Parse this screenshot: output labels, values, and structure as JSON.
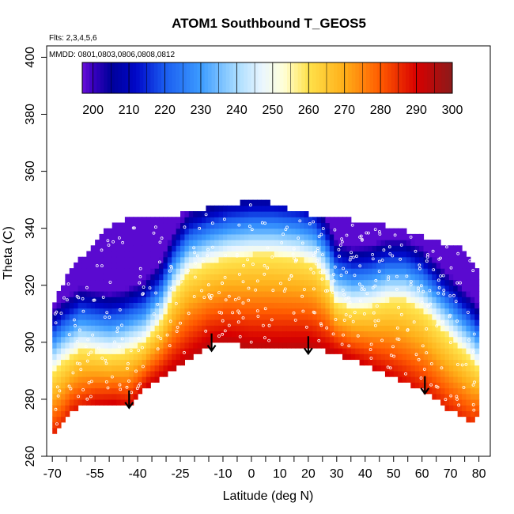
{
  "chart_data": {
    "type": "heatmap",
    "title": "ATOM1 Southbound T_GEOS5",
    "flights_note": "Flts: 2,3,4,5,6",
    "dates_note": "MMDD: 0801,0803,0806,0808,0812",
    "xlabel": "Latitude (deg N)",
    "ylabel": "Theta (C)",
    "xlim": [
      -72,
      84
    ],
    "ylim": [
      260,
      404
    ],
    "x_ticks": [
      -70,
      -55,
      -40,
      -25,
      -10,
      0,
      10,
      20,
      30,
      40,
      50,
      60,
      70,
      80
    ],
    "x_tick_labels": [
      "-70",
      "-55",
      "-40",
      "-25",
      "-10",
      "0",
      "10",
      "20",
      "30",
      "40",
      "50",
      "60",
      "70",
      "80"
    ],
    "x_minor_ticks": [
      -65,
      -60,
      -50,
      -45,
      -35,
      -30,
      -20,
      -15,
      -5,
      5,
      15,
      25,
      35,
      45,
      55,
      65,
      75
    ],
    "y_ticks": [
      260,
      280,
      300,
      320,
      340,
      360,
      380,
      400
    ],
    "y_tick_labels": [
      "260",
      "280",
      "300",
      "320",
      "340",
      "360",
      "380",
      "400"
    ],
    "colorbar": {
      "min": 197,
      "max": 300,
      "ticks": [
        200,
        210,
        220,
        230,
        240,
        250,
        260,
        270,
        280,
        290,
        300
      ],
      "tick_labels": [
        "200",
        "210",
        "220",
        "230",
        "240",
        "250",
        "260",
        "270",
        "280",
        "290",
        "300"
      ],
      "colors": [
        {
          "v": 197,
          "c": "#6a0fd8"
        },
        {
          "v": 200,
          "c": "#3a00c0"
        },
        {
          "v": 205,
          "c": "#00009a"
        },
        {
          "v": 212,
          "c": "#0008c8"
        },
        {
          "v": 220,
          "c": "#1a5cf0"
        },
        {
          "v": 230,
          "c": "#3c9cff"
        },
        {
          "v": 240,
          "c": "#a8dcff"
        },
        {
          "v": 247,
          "c": "#eaf6ff"
        },
        {
          "v": 253,
          "c": "#ffffd8"
        },
        {
          "v": 260,
          "c": "#ffe24a"
        },
        {
          "v": 270,
          "c": "#ffae18"
        },
        {
          "v": 280,
          "c": "#ff5a00"
        },
        {
          "v": 290,
          "c": "#d80000"
        },
        {
          "v": 300,
          "c": "#8b1a1a"
        }
      ]
    },
    "bottom_boundary": [
      [
        -70,
        268
      ],
      [
        -67,
        270
      ],
      [
        -63,
        276
      ],
      [
        -55,
        279
      ],
      [
        -48,
        279
      ],
      [
        -43,
        277
      ],
      [
        -37,
        284
      ],
      [
        -25,
        292
      ],
      [
        -15,
        299
      ],
      [
        -9,
        300
      ],
      [
        0,
        298
      ],
      [
        10,
        298
      ],
      [
        20,
        299
      ],
      [
        30,
        296
      ],
      [
        40,
        292
      ],
      [
        50,
        288
      ],
      [
        58,
        284
      ],
      [
        62,
        282
      ],
      [
        70,
        276
      ],
      [
        78,
        272
      ],
      [
        80,
        274
      ]
    ],
    "top_boundary": [
      [
        -70,
        312
      ],
      [
        -67,
        319
      ],
      [
        -63,
        327
      ],
      [
        -59,
        330
      ],
      [
        -55,
        336
      ],
      [
        -50,
        340
      ],
      [
        -45,
        343
      ],
      [
        -38,
        343
      ],
      [
        -30,
        344
      ],
      [
        -20,
        346
      ],
      [
        -12,
        348
      ],
      [
        -4,
        349
      ],
      [
        0,
        350
      ],
      [
        6,
        349
      ],
      [
        12,
        347
      ],
      [
        20,
        345
      ],
      [
        28,
        344
      ],
      [
        35,
        343
      ],
      [
        44,
        342
      ],
      [
        50,
        340
      ],
      [
        58,
        338
      ],
      [
        66,
        335
      ],
      [
        72,
        334
      ],
      [
        76,
        331
      ],
      [
        80,
        326
      ]
    ],
    "tropopause_profile": [
      [
        -70,
        290
      ],
      [
        -66,
        294
      ],
      [
        -60,
        298
      ],
      [
        -55,
        297
      ],
      [
        -50,
        296
      ],
      [
        -45,
        297
      ],
      [
        -38,
        300
      ],
      [
        -32,
        307
      ],
      [
        -27,
        318
      ],
      [
        -22,
        325
      ],
      [
        -15,
        328
      ],
      [
        -8,
        330
      ],
      [
        0,
        331
      ],
      [
        8,
        331
      ],
      [
        16,
        330
      ],
      [
        22,
        328
      ],
      [
        26,
        323
      ],
      [
        30,
        314
      ],
      [
        36,
        312
      ],
      [
        42,
        313
      ],
      [
        48,
        315
      ],
      [
        54,
        315
      ],
      [
        60,
        312
      ],
      [
        66,
        306
      ],
      [
        72,
        300
      ],
      [
        78,
        294
      ],
      [
        80,
        291
      ]
    ],
    "arrows": [
      {
        "lat": -43,
        "theta": 277
      },
      {
        "lat": -14,
        "theta": 297
      },
      {
        "lat": 20,
        "theta": 296
      },
      {
        "lat": 61,
        "theta": 282
      }
    ]
  }
}
